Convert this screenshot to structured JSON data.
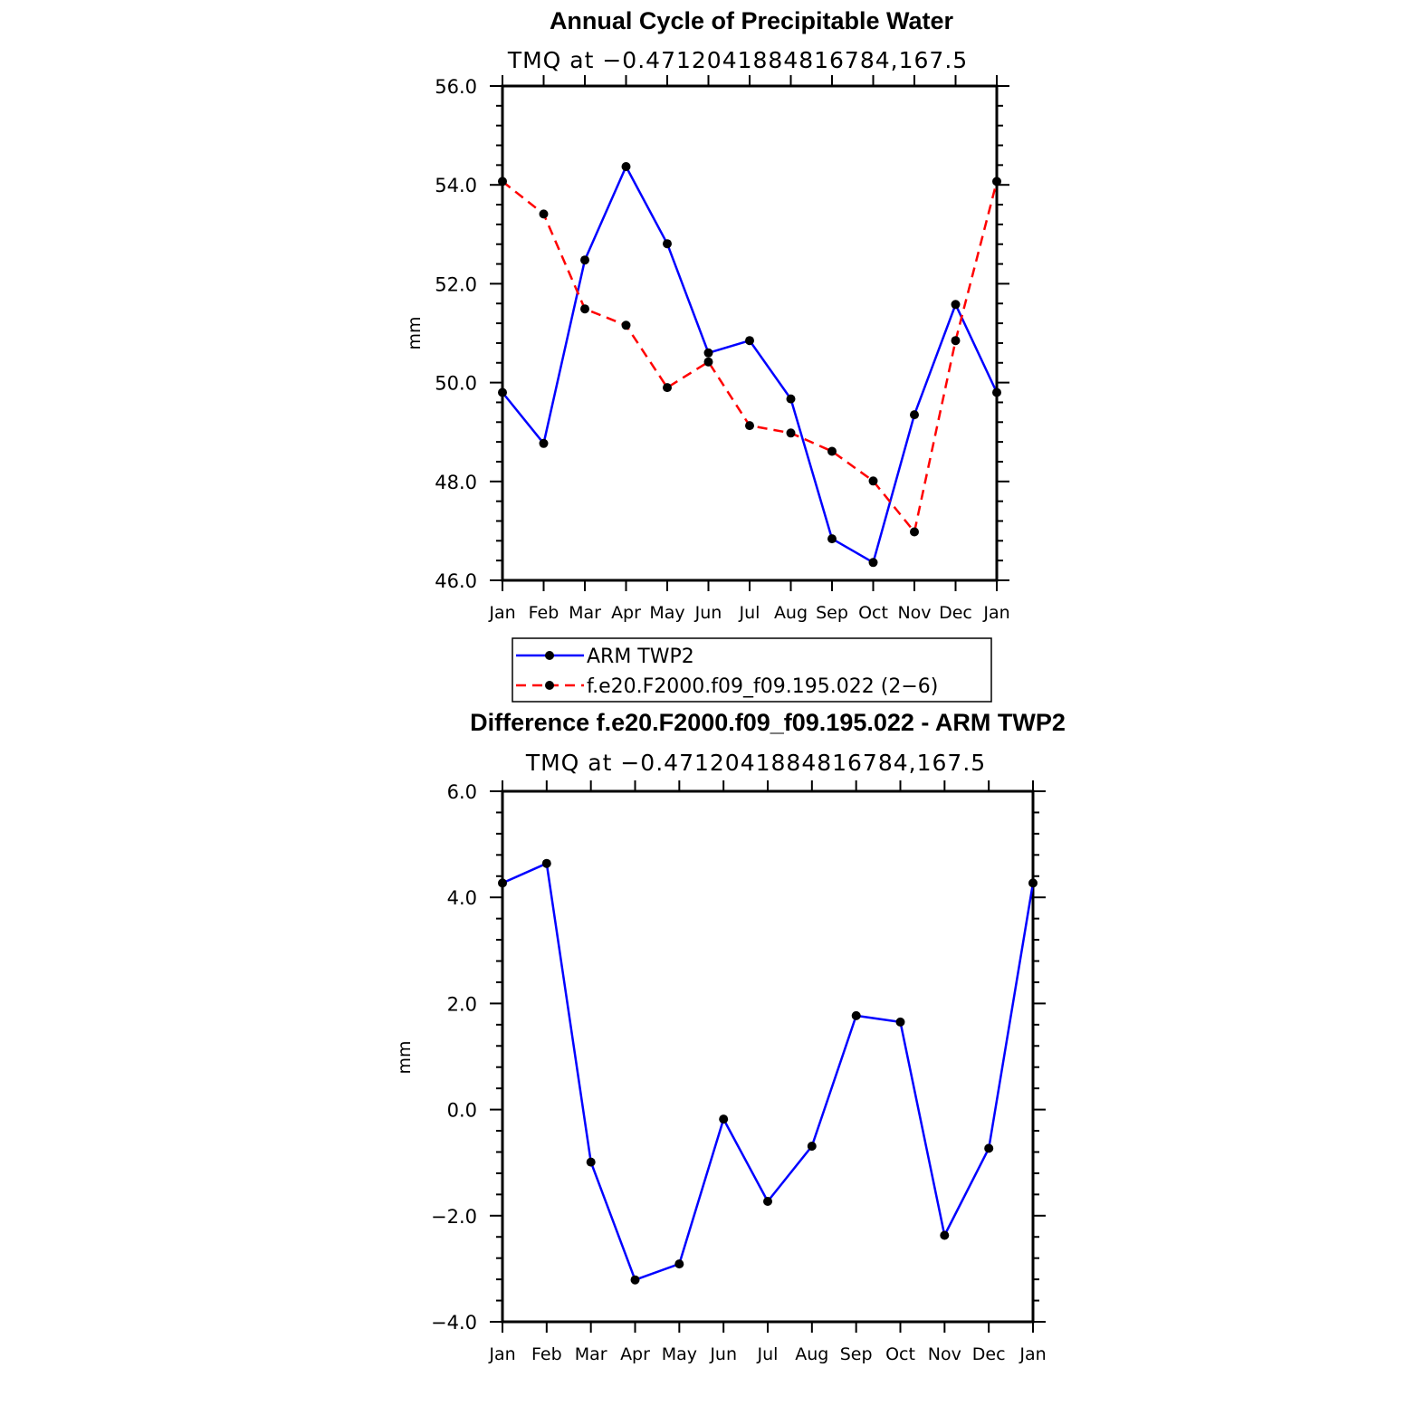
{
  "chart_data": [
    {
      "type": "line",
      "title": "Annual Cycle of Precipitable Water",
      "subtitle": "TMQ at −0.4712041884816784,167.5",
      "ylabel": "mm",
      "xlabel": "",
      "ylim": [
        46.0,
        56.0
      ],
      "yticks": [
        46.0,
        48.0,
        50.0,
        52.0,
        54.0,
        56.0
      ],
      "yticks_text": [
        "46.0",
        "48.0",
        "50.0",
        "52.0",
        "54.0",
        "56.0"
      ],
      "categories": [
        "Jan",
        "Feb",
        "Mar",
        "Apr",
        "May",
        "Jun",
        "Jul",
        "Aug",
        "Sep",
        "Oct",
        "Nov",
        "Dec",
        "Jan"
      ],
      "series": [
        {
          "name": "ARM TWP2",
          "color": "#0000ff",
          "dash": "solid",
          "values": [
            49.8,
            48.77,
            52.48,
            54.37,
            52.81,
            50.6,
            50.85,
            49.67,
            46.84,
            46.36,
            49.35,
            51.58,
            49.8
          ]
        },
        {
          "name": "f.e20.F2000.f09_f09.195.022 (2−6)",
          "color": "#ff0000",
          "dash": "dashed",
          "values": [
            54.07,
            53.41,
            51.49,
            51.16,
            49.9,
            50.42,
            49.13,
            48.98,
            48.61,
            48.01,
            46.98,
            50.85,
            54.07
          ]
        }
      ],
      "legend": {
        "position": "bottom",
        "entries": [
          "ARM TWP2",
          "f.e20.F2000.f09_f09.195.022 (2−6)"
        ]
      },
      "grid": false
    },
    {
      "type": "line",
      "title": "Difference f.e20.F2000.f09_f09.195.022 - ARM TWP2",
      "subtitle": "TMQ at −0.4712041884816784,167.5",
      "ylabel": "mm",
      "xlabel": "",
      "ylim": [
        -4.0,
        6.0
      ],
      "yticks": [
        -4.0,
        -2.0,
        0.0,
        2.0,
        4.0,
        6.0
      ],
      "yticks_text": [
        "−4.0",
        "−2.0",
        "0.0",
        "2.0",
        "4.0",
        "6.0"
      ],
      "categories": [
        "Jan",
        "Feb",
        "Mar",
        "Apr",
        "May",
        "Jun",
        "Jul",
        "Aug",
        "Sep",
        "Oct",
        "Nov",
        "Dec",
        "Jan"
      ],
      "series": [
        {
          "name": "Difference",
          "color": "#0000ff",
          "dash": "solid",
          "values": [
            4.27,
            4.64,
            -0.99,
            -3.21,
            -2.91,
            -0.18,
            -1.73,
            -0.69,
            1.77,
            1.65,
            -2.37,
            -0.73,
            4.27
          ]
        }
      ],
      "grid": false
    }
  ]
}
